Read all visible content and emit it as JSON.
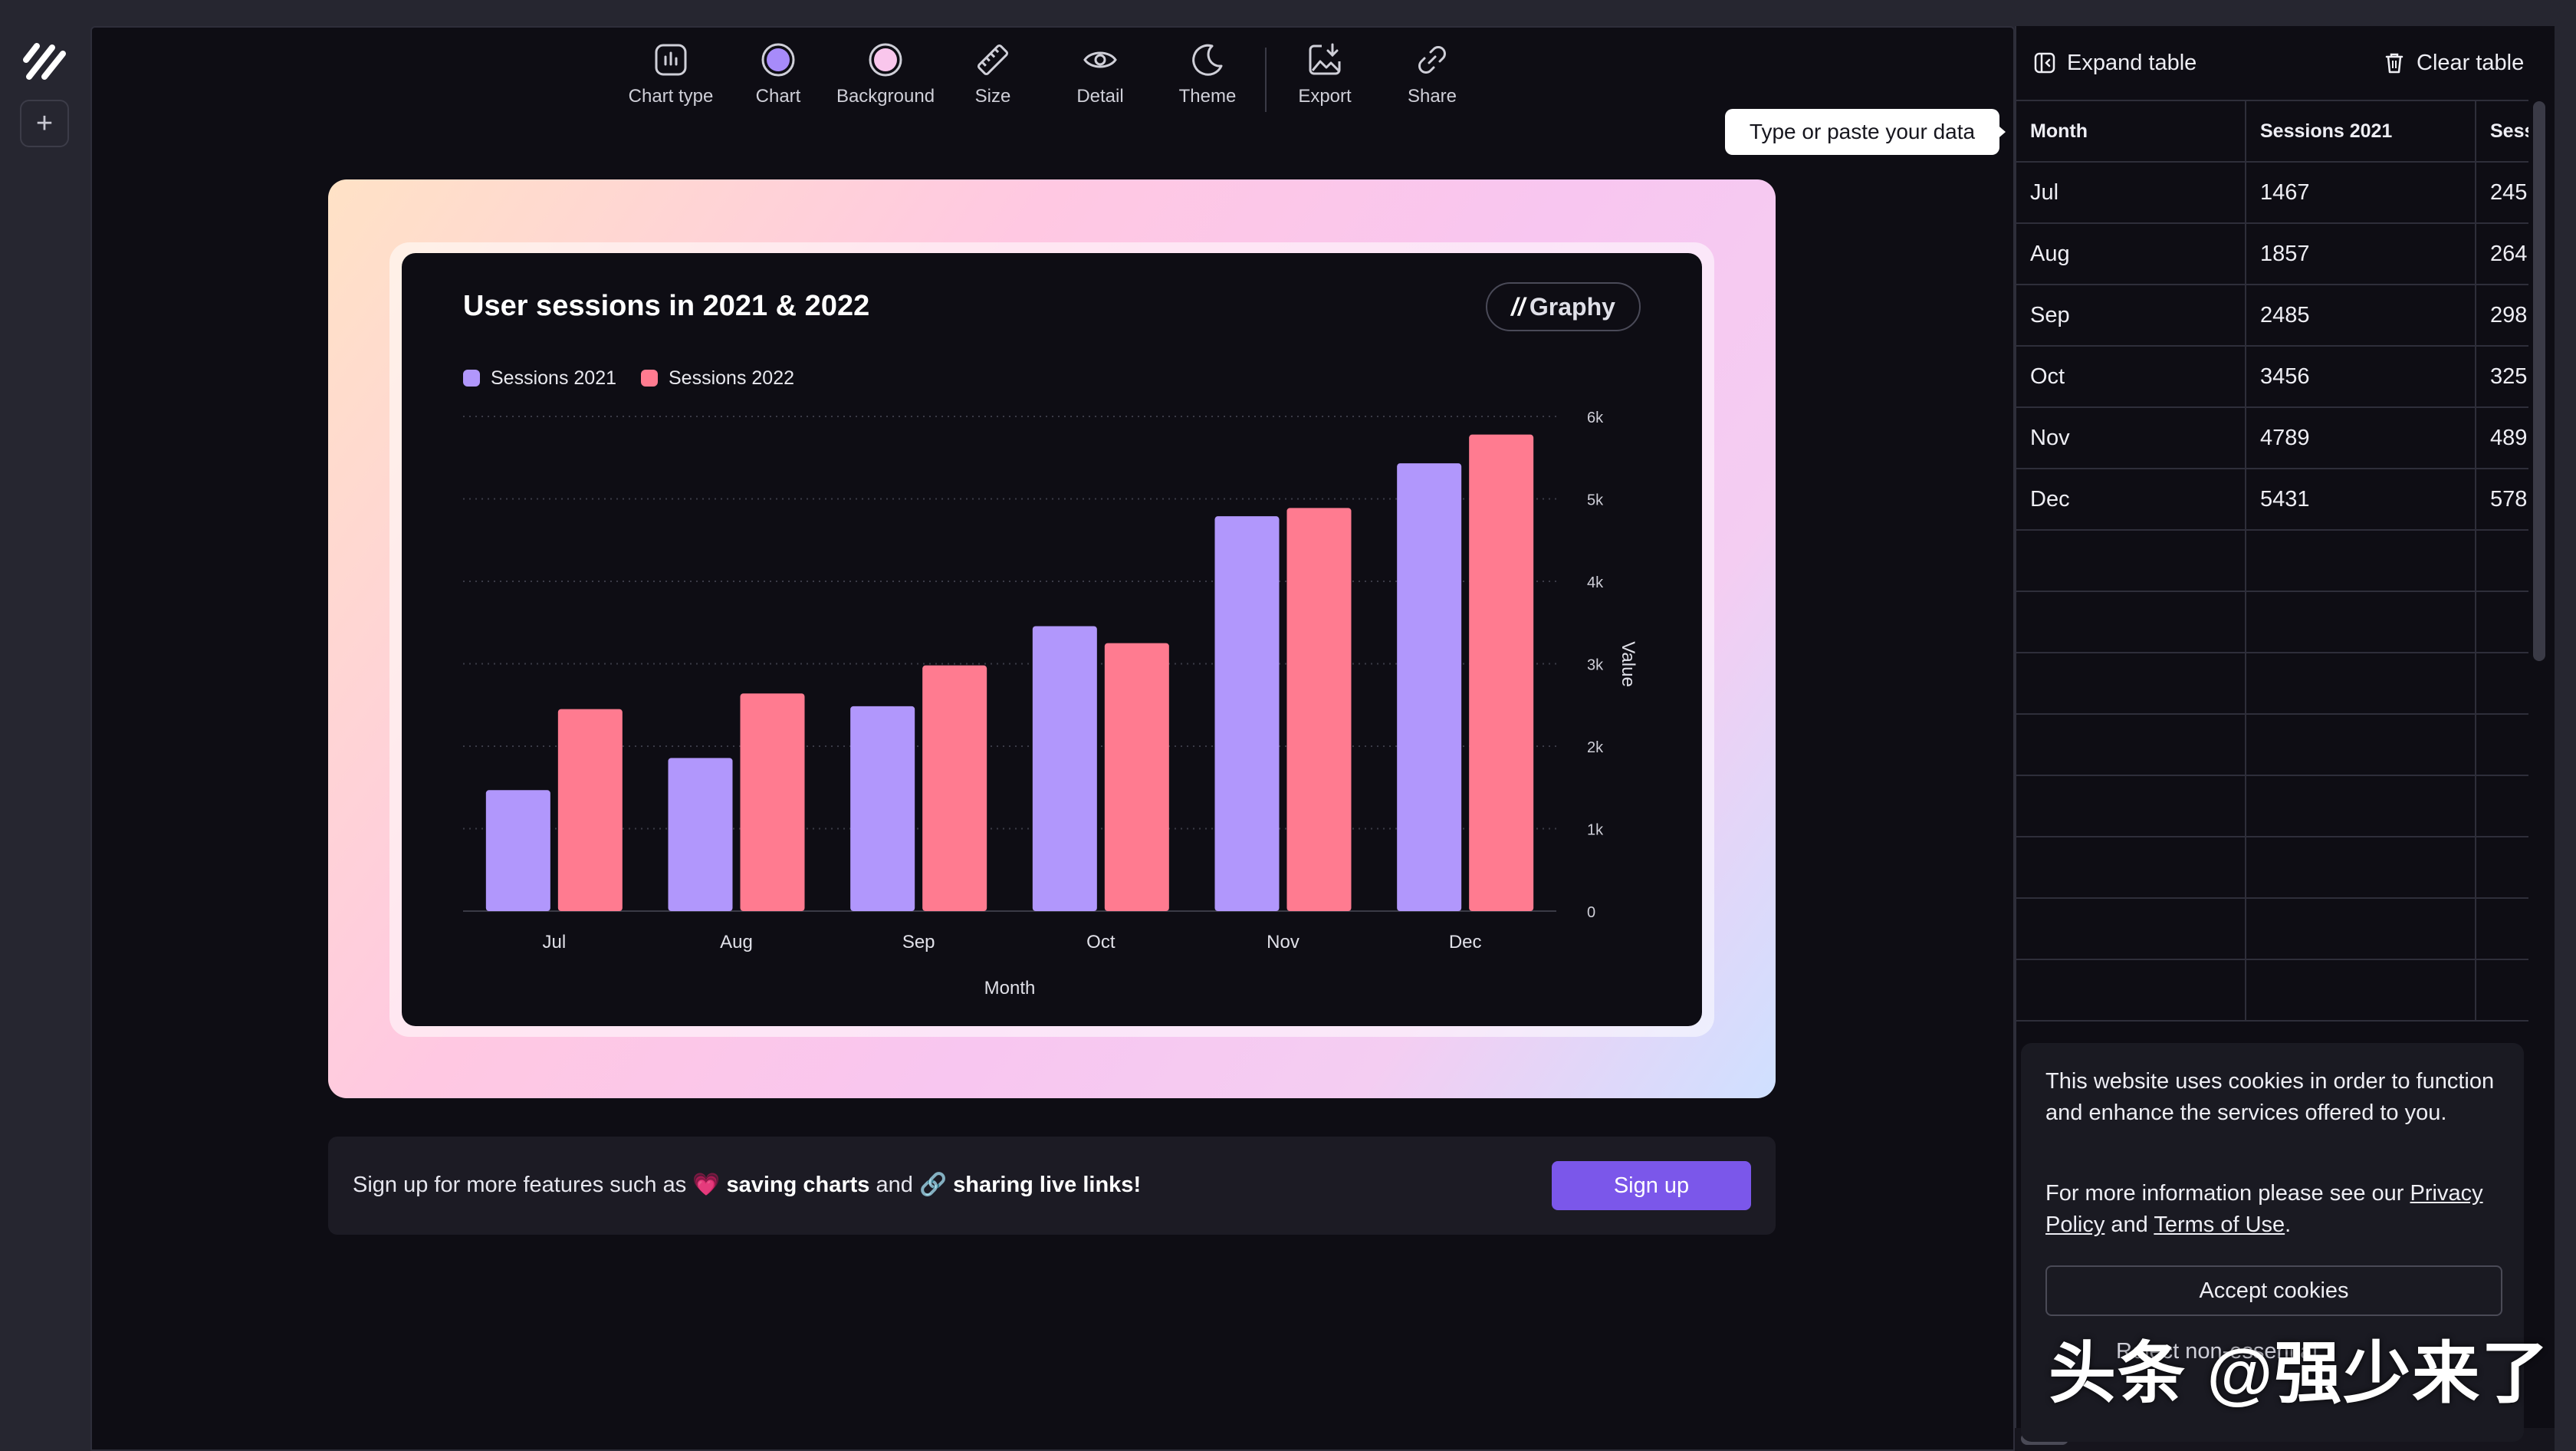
{
  "toolbar": {
    "items": [
      {
        "label": "Chart type",
        "icon": "bar-chart-icon"
      },
      {
        "label": "Chart",
        "icon": "purple-circle-icon"
      },
      {
        "label": "Background",
        "icon": "pink-circle-icon"
      },
      {
        "label": "Size",
        "icon": "ruler-icon"
      },
      {
        "label": "Detail",
        "icon": "eye-icon"
      },
      {
        "label": "Theme",
        "icon": "moon-icon"
      },
      {
        "label": "Export",
        "icon": "export-image-icon"
      },
      {
        "label": "Share",
        "icon": "link-icon"
      }
    ]
  },
  "colors": {
    "series_2021": "#b197fc",
    "series_2022": "#ff7b90",
    "accent": "#7b57ea"
  },
  "chart": {
    "title": "User sessions in 2021 & 2022",
    "badge": "Graphy",
    "badge_mark": "//"
  },
  "chart_data": {
    "type": "bar",
    "title": "User sessions in 2021 & 2022",
    "categories": [
      "Jul",
      "Aug",
      "Sep",
      "Oct",
      "Nov",
      "Dec"
    ],
    "series": [
      {
        "name": "Sessions 2021",
        "values": [
          1467,
          1857,
          2485,
          3456,
          4789,
          5431
        ]
      },
      {
        "name": "Sessions 2022",
        "values": [
          2450,
          2640,
          2980,
          3250,
          4890,
          5780
        ]
      }
    ],
    "xlabel": "Month",
    "ylabel": "Value",
    "ylim": [
      0,
      6000
    ],
    "yticks": [
      "0",
      "1k",
      "2k",
      "3k",
      "4k",
      "5k",
      "6k"
    ],
    "grid": true,
    "legend": "top-left",
    "y_axis_side": "right"
  },
  "signup": {
    "text_prefix": "Sign up for more features such as ",
    "emoji_heart": "💗",
    "feature1": "saving charts",
    "and_text": " and ",
    "emoji_link": "🔗",
    "feature2": "sharing live links",
    "suffix": "!",
    "button": "Sign up"
  },
  "tooltip": "Type or paste your data",
  "panel": {
    "expand": "Expand table",
    "clear": "Clear table",
    "headers": [
      "Month",
      "Sessions 2021",
      "Sess"
    ],
    "rows": [
      [
        "Jul",
        "1467",
        "245"
      ],
      [
        "Aug",
        "1857",
        "264"
      ],
      [
        "Sep",
        "2485",
        "298"
      ],
      [
        "Oct",
        "3456",
        "325"
      ],
      [
        "Nov",
        "4789",
        "489"
      ],
      [
        "Dec",
        "5431",
        "578"
      ]
    ]
  },
  "cookie": {
    "text1": "This website uses cookies in order to function and enhance the services offered to you.",
    "text2_prefix": "For more information please see our ",
    "privacy": "Privacy Policy",
    "and": " and ",
    "terms": "Terms of Use",
    "period": ".",
    "accept": "Accept cookies",
    "reject": "Reject non-essential"
  },
  "watermark": "头条 @强少来了"
}
